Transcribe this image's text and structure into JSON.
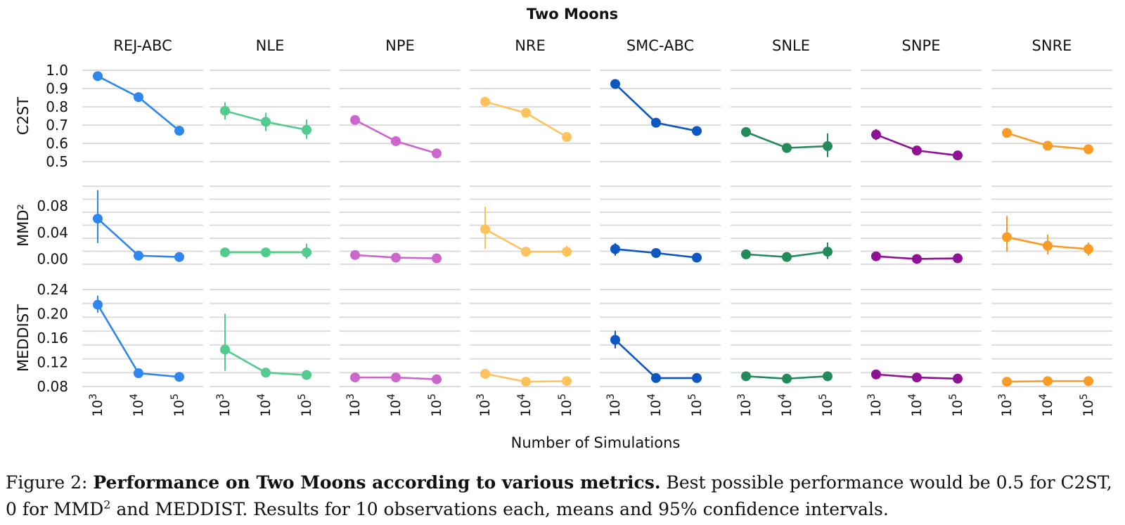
{
  "chart_data": {
    "type": "line",
    "title": "Two Moons",
    "xlabel": "Number of Simulations",
    "x": [
      "10^3",
      "10^4",
      "10^5"
    ],
    "x_tick_labels": [
      {
        "base": "10",
        "exp": "3"
      },
      {
        "base": "10",
        "exp": "4"
      },
      {
        "base": "10",
        "exp": "5"
      }
    ],
    "grid": true,
    "methods": [
      "REJ-ABC",
      "NLE",
      "NPE",
      "NRE",
      "SMC-ABC",
      "SNLE",
      "SNPE",
      "SNRE"
    ],
    "colors": {
      "REJ-ABC": "#2e86ef",
      "NLE": "#52cc8e",
      "NPE": "#cc66cc",
      "NRE": "#ffc25c",
      "SMC-ABC": "#0c57c2",
      "SNLE": "#238a5a",
      "SNPE": "#8f1194",
      "SNRE": "#f99b25"
    },
    "metrics": [
      {
        "name": "C2ST",
        "ylim": [
          0.5,
          1.0
        ],
        "yticks": [
          0.5,
          0.6,
          0.7,
          0.8,
          0.9,
          1.0
        ],
        "ytick_labels": [
          "0.5",
          "0.6",
          "0.7",
          "0.8",
          "0.9",
          "1.0"
        ],
        "series": [
          {
            "method": "REJ-ABC",
            "values": [
              0.968,
              0.853,
              0.669
            ],
            "ci": [
              [
                0.962,
                0.974
              ],
              [
                0.847,
                0.859
              ],
              [
                0.663,
                0.675
              ]
            ]
          },
          {
            "method": "NLE",
            "values": [
              0.778,
              0.718,
              0.674
            ],
            "ci": [
              [
                0.73,
                0.826
              ],
              [
                0.668,
                0.768
              ],
              [
                0.625,
                0.73
              ]
            ]
          },
          {
            "method": "NPE",
            "values": [
              0.728,
              0.612,
              0.545
            ],
            "ci": [
              [
                0.722,
                0.735
              ],
              [
                0.606,
                0.618
              ],
              [
                0.539,
                0.551
              ]
            ]
          },
          {
            "method": "NRE",
            "values": [
              0.828,
              0.767,
              0.635
            ],
            "ci": [
              [
                0.818,
                0.838
              ],
              [
                0.757,
                0.777
              ],
              [
                0.613,
                0.655
              ]
            ]
          },
          {
            "method": "SMC-ABC",
            "values": [
              0.925,
              0.713,
              0.668
            ],
            "ci": [
              [
                0.918,
                0.932
              ],
              [
                0.707,
                0.719
              ],
              [
                0.661,
                0.675
              ]
            ]
          },
          {
            "method": "SNLE",
            "values": [
              0.662,
              0.575,
              0.585
            ],
            "ci": [
              [
                0.655,
                0.668
              ],
              [
                0.565,
                0.585
              ],
              [
                0.525,
                0.655
              ]
            ]
          },
          {
            "method": "SNPE",
            "values": [
              0.648,
              0.561,
              0.534
            ],
            "ci": [
              [
                0.618,
                0.678
              ],
              [
                0.555,
                0.567
              ],
              [
                0.528,
                0.54
              ]
            ]
          },
          {
            "method": "SNRE",
            "values": [
              0.657,
              0.587,
              0.568
            ],
            "ci": [
              [
                0.651,
                0.663
              ],
              [
                0.58,
                0.594
              ],
              [
                0.561,
                0.575
              ]
            ]
          }
        ]
      },
      {
        "name": "MMD²",
        "ylim": [
          -0.008,
          0.11
        ],
        "yticks": [
          0.0,
          0.04,
          0.08
        ],
        "ytick_labels": [
          "0.00",
          "0.04",
          "0.08"
        ],
        "series": [
          {
            "method": "REJ-ABC",
            "values": [
              0.061,
              0.005,
              0.003
            ],
            "ci": [
              [
                0.024,
                0.104
              ],
              [
                0.003,
                0.007
              ],
              [
                0.002,
                0.004
              ]
            ]
          },
          {
            "method": "NLE",
            "values": [
              0.01,
              0.01,
              0.01
            ],
            "ci": [
              [
                0.004,
                0.017
              ],
              [
                0.006,
                0.014
              ],
              [
                0.0,
                0.023
              ]
            ]
          },
          {
            "method": "NPE",
            "values": [
              0.006,
              0.002,
              0.001
            ],
            "ci": [
              [
                0.004,
                0.008
              ],
              [
                0.001,
                0.003
              ],
              [
                0.0,
                0.002
              ]
            ]
          },
          {
            "method": "NRE",
            "values": [
              0.045,
              0.011,
              0.011
            ],
            "ci": [
              [
                0.015,
                0.079
              ],
              [
                0.008,
                0.014
              ],
              [
                0.003,
                0.02
              ]
            ]
          },
          {
            "method": "SMC-ABC",
            "values": [
              0.015,
              0.009,
              0.002
            ],
            "ci": [
              [
                0.005,
                0.024
              ],
              [
                0.007,
                0.011
              ],
              [
                0.001,
                0.003
              ]
            ]
          },
          {
            "method": "SNLE",
            "values": [
              0.007,
              0.003,
              0.011
            ],
            "ci": [
              [
                0.003,
                0.011
              ],
              [
                0.001,
                0.005
              ],
              [
                0.0,
                0.025
              ]
            ]
          },
          {
            "method": "SNPE",
            "values": [
              0.004,
              0.0,
              0.001
            ],
            "ci": [
              [
                0.002,
                0.006
              ],
              [
                0.0,
                0.001
              ],
              [
                0.0,
                0.002
              ]
            ]
          },
          {
            "method": "SNRE",
            "values": [
              0.033,
              0.02,
              0.015
            ],
            "ci": [
              [
                0.011,
                0.065
              ],
              [
                0.007,
                0.037
              ],
              [
                0.005,
                0.025
              ]
            ]
          }
        ]
      },
      {
        "name": "MEDDIST",
        "ylim": [
          0.08,
          0.24
        ],
        "yticks": [
          0.08,
          0.12,
          0.16,
          0.2,
          0.24
        ],
        "ytick_labels": [
          "0.08",
          "0.12",
          "0.16",
          "0.20",
          "0.24"
        ],
        "series": [
          {
            "method": "REJ-ABC",
            "values": [
              0.215,
              0.102,
              0.096
            ],
            "ci": [
              [
                0.202,
                0.23
              ],
              [
                0.099,
                0.105
              ],
              [
                0.094,
                0.098
              ]
            ]
          },
          {
            "method": "NLE",
            "values": [
              0.141,
              0.103,
              0.099
            ],
            "ci": [
              [
                0.106,
                0.2
              ],
              [
                0.1,
                0.106
              ],
              [
                0.094,
                0.107
              ]
            ]
          },
          {
            "method": "NPE",
            "values": [
              0.095,
              0.095,
              0.092
            ],
            "ci": [
              [
                0.093,
                0.097
              ],
              [
                0.093,
                0.097
              ],
              [
                0.09,
                0.094
              ]
            ]
          },
          {
            "method": "NRE",
            "values": [
              0.101,
              0.088,
              0.089
            ],
            "ci": [
              [
                0.098,
                0.104
              ],
              [
                0.086,
                0.09
              ],
              [
                0.086,
                0.092
              ]
            ]
          },
          {
            "method": "SMC-ABC",
            "values": [
              0.157,
              0.094,
              0.094
            ],
            "ci": [
              [
                0.143,
                0.172
              ],
              [
                0.092,
                0.096
              ],
              [
                0.092,
                0.096
              ]
            ]
          },
          {
            "method": "SNLE",
            "values": [
              0.097,
              0.093,
              0.097
            ],
            "ci": [
              [
                0.095,
                0.099
              ],
              [
                0.091,
                0.095
              ],
              [
                0.093,
                0.102
              ]
            ]
          },
          {
            "method": "SNPE",
            "values": [
              0.1,
              0.095,
              0.093
            ],
            "ci": [
              [
                0.098,
                0.102
              ],
              [
                0.093,
                0.097
              ],
              [
                0.091,
                0.095
              ]
            ]
          },
          {
            "method": "SNRE",
            "values": [
              0.088,
              0.089,
              0.089
            ],
            "ci": [
              [
                0.086,
                0.09
              ],
              [
                0.087,
                0.091
              ],
              [
                0.087,
                0.091
              ]
            ]
          }
        ]
      }
    ]
  },
  "caption": {
    "label": "Figure 2:",
    "bold": "Performance on Two Moons according to various metrics.",
    "text_1": "Best possible performance would be 0.5 for C2ST, 0 for MMD",
    "sup": "2",
    "text_2": "and MEDDIST. Results for 10 observations each, means and 95% confidence intervals."
  }
}
